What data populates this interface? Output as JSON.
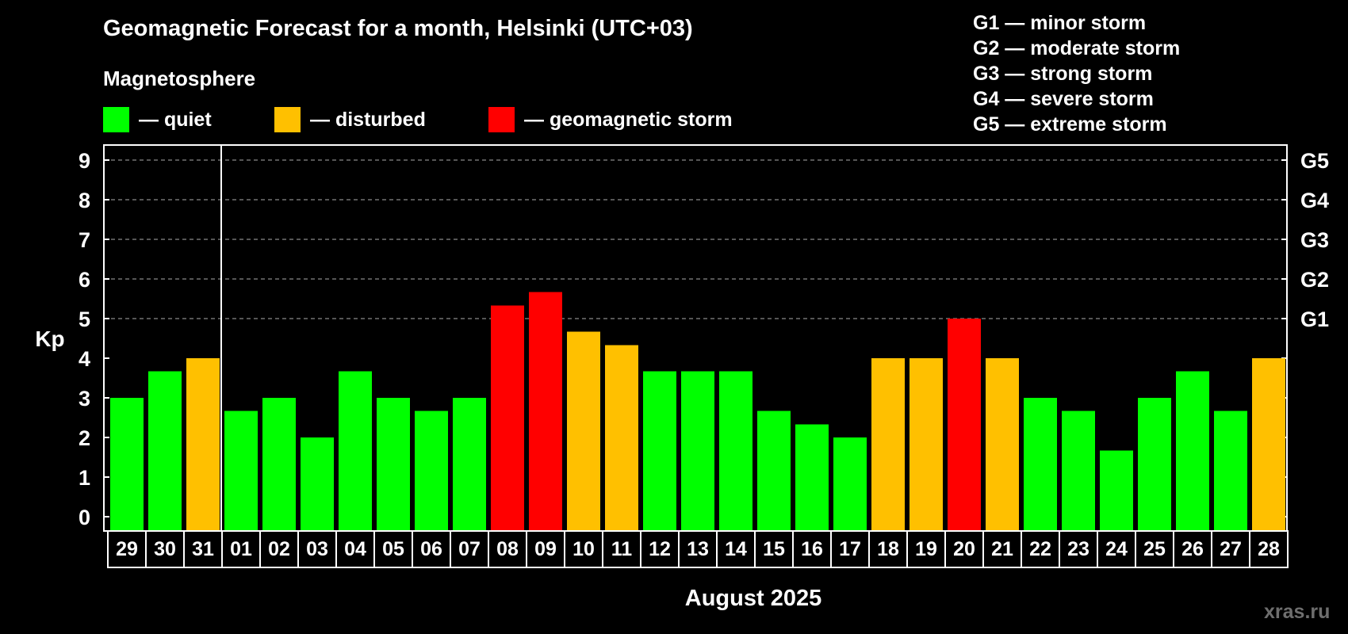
{
  "chart_data": {
    "type": "bar",
    "title": "Geomagnetic Forecast for a month, Helsinki (UTC+03)",
    "subtitle": "Magnetosphere",
    "ylabel": "Kp",
    "xlabel": "August 2025",
    "ylim": [
      0,
      9
    ],
    "yticks": [
      "0",
      "1",
      "2",
      "3",
      "4",
      "5",
      "6",
      "7",
      "8",
      "9"
    ],
    "right_ticks": [
      {
        "kp": 5,
        "label": "G1"
      },
      {
        "kp": 6,
        "label": "G2"
      },
      {
        "kp": 7,
        "label": "G3"
      },
      {
        "kp": 8,
        "label": "G4"
      },
      {
        "kp": 9,
        "label": "G5"
      }
    ],
    "categories": [
      "29",
      "30",
      "31",
      "01",
      "02",
      "03",
      "04",
      "05",
      "06",
      "07",
      "08",
      "09",
      "10",
      "11",
      "12",
      "13",
      "14",
      "15",
      "16",
      "17",
      "18",
      "19",
      "20",
      "21",
      "22",
      "23",
      "24",
      "25",
      "26",
      "27",
      "28"
    ],
    "values": [
      3.0,
      3.67,
      4.0,
      2.67,
      3.0,
      2.0,
      3.67,
      3.0,
      2.67,
      3.0,
      5.33,
      5.67,
      4.67,
      4.33,
      3.67,
      3.67,
      3.67,
      2.67,
      2.33,
      2.0,
      4.0,
      4.0,
      5.0,
      4.0,
      3.0,
      2.67,
      1.67,
      3.0,
      3.67,
      2.67,
      4.0
    ],
    "levels": [
      "quiet",
      "quiet",
      "disturbed",
      "quiet",
      "quiet",
      "quiet",
      "quiet",
      "quiet",
      "quiet",
      "quiet",
      "storm",
      "storm",
      "disturbed",
      "disturbed",
      "quiet",
      "quiet",
      "quiet",
      "quiet",
      "quiet",
      "quiet",
      "disturbed",
      "disturbed",
      "storm",
      "disturbed",
      "quiet",
      "quiet",
      "quiet",
      "quiet",
      "quiet",
      "quiet",
      "disturbed"
    ],
    "month_divider_after_index": 2,
    "grid": "dashed at storm levels",
    "colors": {
      "quiet": "#00ff00",
      "disturbed": "#ffc000",
      "storm": "#ff0000",
      "background": "#000000",
      "axis": "#ffffff"
    }
  },
  "legend": [
    {
      "key": "quiet",
      "label": "— quiet"
    },
    {
      "key": "disturbed",
      "label": "— disturbed"
    },
    {
      "key": "storm",
      "label": "— geomagnetic storm"
    }
  ],
  "g_scale": [
    "G1 — minor storm",
    "G2 — moderate storm",
    "G3 — strong storm",
    "G4 — severe storm",
    "G5 — extreme storm"
  ],
  "watermark": "xras.ru"
}
